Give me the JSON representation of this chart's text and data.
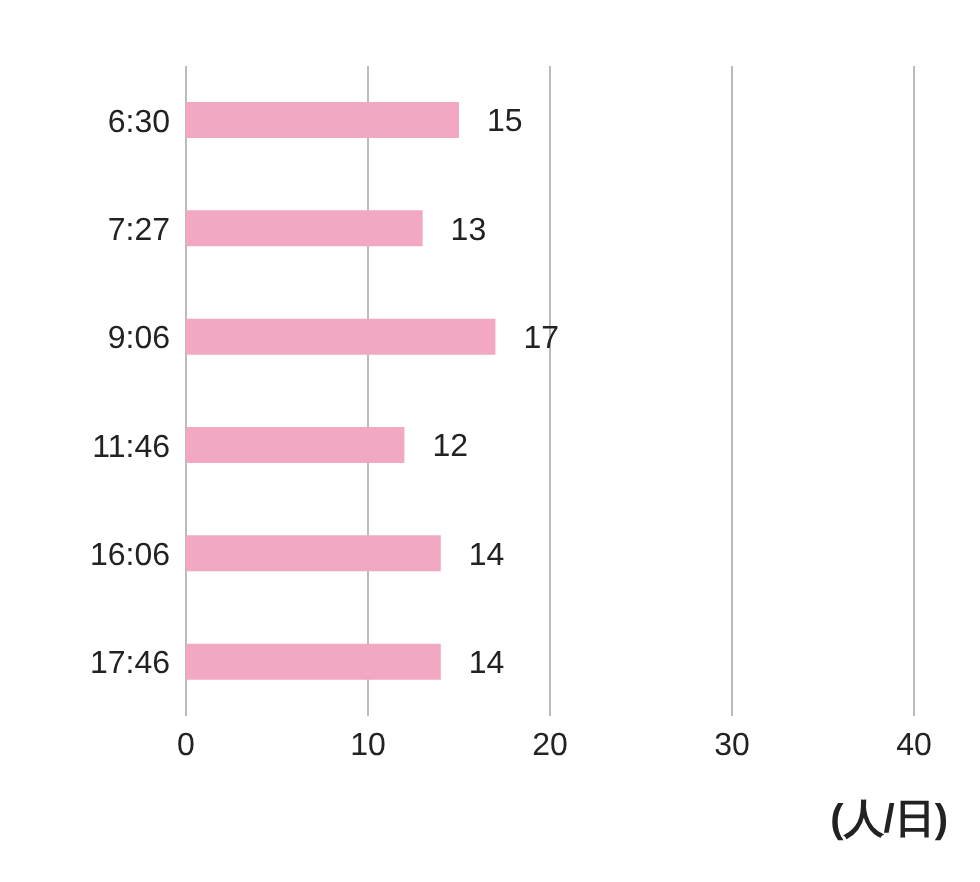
{
  "chart_data": {
    "type": "bar",
    "orientation": "horizontal",
    "categories": [
      "6:30",
      "7:27",
      "9:06",
      "11:46",
      "16:06",
      "17:46"
    ],
    "values": [
      15,
      13,
      17,
      12,
      14,
      14
    ],
    "color": "#f2a7c3",
    "xlim": [
      0,
      40
    ],
    "xticks": [
      0,
      10,
      20,
      30,
      40
    ],
    "xlabel": "(人/日)",
    "grid": "x",
    "data_labels": true
  }
}
